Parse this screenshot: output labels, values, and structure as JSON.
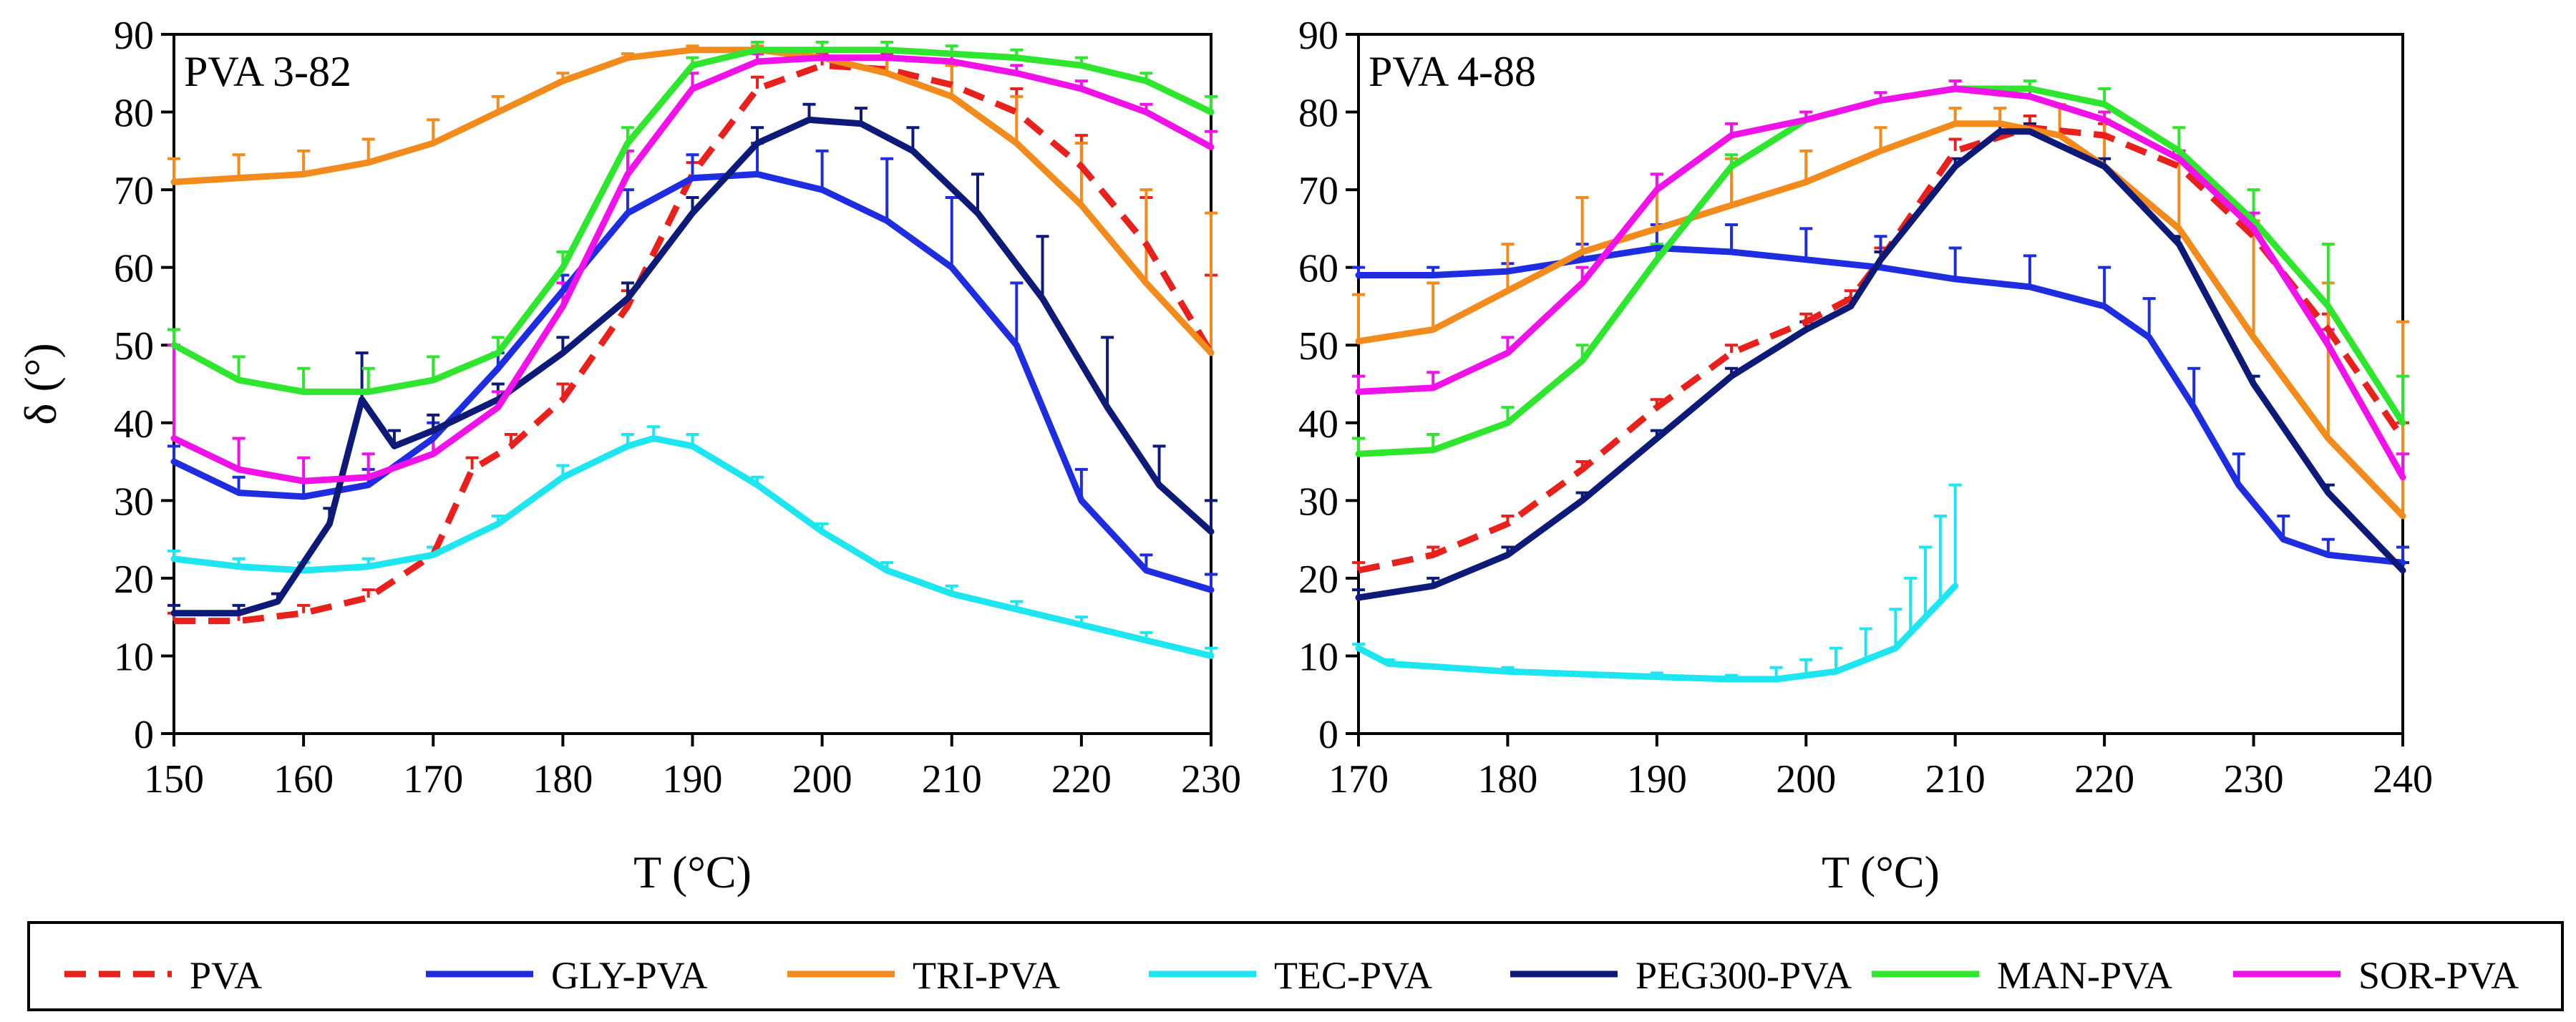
{
  "chart_data": [
    {
      "type": "line",
      "title": "PVA 3-82",
      "xlabel": "T (°C)",
      "ylabel": "δ (°)",
      "xlim": [
        150,
        230
      ],
      "ylim": [
        0,
        90
      ],
      "xticks": [
        150,
        160,
        170,
        180,
        190,
        200,
        210,
        220,
        230
      ],
      "yticks": [
        0,
        10,
        20,
        30,
        40,
        50,
        60,
        70,
        80,
        90
      ],
      "error_bars": "one-sided (upward), same colour as series",
      "grid": false,
      "series": [
        {
          "name": "PVA",
          "color": "#e8211c",
          "dash": true,
          "x": [
            150,
            155,
            160,
            165,
            170,
            173,
            176,
            180,
            185,
            190,
            195,
            200,
            205,
            210,
            215,
            220,
            225,
            230
          ],
          "y": [
            14.5,
            14.5,
            15.5,
            17.5,
            23,
            34,
            37,
            43,
            55,
            72,
            83,
            86,
            85.5,
            83.5,
            80,
            73,
            63,
            49
          ],
          "err": [
            1,
            1,
            1,
            1,
            1,
            1.5,
            1.5,
            2,
            2,
            1.5,
            1.5,
            1.5,
            2,
            2.5,
            3,
            4,
            6,
            10
          ]
        },
        {
          "name": "GLY-PVA",
          "color": "#1f2de0",
          "x": [
            150,
            155,
            160,
            165,
            170,
            175,
            180,
            185,
            190,
            195,
            200,
            205,
            210,
            215,
            220,
            225,
            230
          ],
          "y": [
            35,
            31,
            30.5,
            32,
            38,
            47,
            57,
            67,
            71.5,
            72,
            70,
            66,
            60,
            50,
            30,
            21,
            18.5
          ],
          "err": [
            2,
            2,
            2,
            2,
            2,
            2,
            2,
            3,
            3,
            4,
            5,
            8,
            9,
            8,
            4,
            2,
            2
          ]
        },
        {
          "name": "TRI-PVA",
          "color": "#f28a1c",
          "x": [
            150,
            155,
            160,
            165,
            170,
            175,
            180,
            185,
            190,
            195,
            200,
            205,
            210,
            215,
            220,
            225,
            230
          ],
          "y": [
            71,
            71.5,
            72,
            73.5,
            76,
            80,
            84,
            87,
            88,
            88,
            87,
            85,
            82,
            76,
            68,
            58,
            49
          ],
          "err": [
            3,
            3,
            3,
            3,
            3,
            2,
            1,
            0.5,
            0.5,
            0.5,
            1,
            2,
            4,
            6,
            8,
            12,
            18
          ]
        },
        {
          "name": "TEC-PVA",
          "color": "#1ee6f0",
          "x": [
            150,
            155,
            160,
            165,
            170,
            175,
            180,
            185,
            187,
            190,
            195,
            200,
            205,
            210,
            215,
            220,
            225,
            230
          ],
          "y": [
            22.5,
            21.5,
            21,
            21.5,
            23,
            27,
            33,
            37,
            38,
            37,
            32,
            26,
            21,
            18,
            16,
            14,
            12,
            10
          ],
          "err": [
            1,
            1,
            1,
            1,
            1,
            1,
            1.5,
            1.5,
            1.5,
            1.5,
            1,
            1,
            1,
            1,
            1,
            1,
            1,
            1
          ]
        },
        {
          "name": "PEG300-PVA",
          "color": "#0d1a78",
          "x": [
            150,
            155,
            158,
            162,
            164.5,
            167,
            170,
            175,
            180,
            185,
            190,
            195,
            199,
            203,
            207,
            212,
            217,
            222,
            226,
            230
          ],
          "y": [
            15.5,
            15.5,
            17,
            27,
            43,
            37,
            39,
            43,
            49,
            56,
            67,
            76,
            79,
            78.5,
            75,
            67,
            56,
            42,
            32,
            26
          ],
          "err": [
            1,
            1,
            1,
            2,
            6,
            2,
            2,
            2,
            2,
            2,
            2,
            2,
            2,
            2,
            3,
            5,
            8,
            9,
            5,
            4
          ]
        },
        {
          "name": "MAN-PVA",
          "color": "#2ee62e",
          "x": [
            150,
            155,
            160,
            165,
            170,
            175,
            180,
            185,
            190,
            195,
            200,
            205,
            210,
            215,
            220,
            225,
            230
          ],
          "y": [
            50,
            45.5,
            44,
            44,
            45.5,
            49,
            60,
            76,
            86,
            88,
            88,
            88,
            87.5,
            87,
            86,
            84,
            80
          ],
          "err": [
            2,
            3,
            3,
            3,
            3,
            2,
            2,
            2,
            1,
            1,
            1,
            1,
            1,
            1,
            1,
            1,
            2
          ]
        },
        {
          "name": "SOR-PVA",
          "color": "#f012e8",
          "x": [
            150,
            155,
            160,
            165,
            170,
            175,
            180,
            185,
            190,
            195,
            200,
            205,
            210,
            215,
            220,
            225,
            230
          ],
          "y": [
            38,
            34,
            32.5,
            33,
            36,
            42,
            55,
            72,
            83,
            86.5,
            87,
            87,
            86.5,
            85,
            83,
            80,
            75.5
          ],
          "err": [
            12,
            4,
            3,
            3,
            3,
            2,
            3,
            3,
            2,
            1,
            1,
            1,
            1,
            1,
            1,
            1,
            2
          ]
        }
      ]
    },
    {
      "type": "line",
      "title": "PVA 4-88",
      "xlabel": "T (°C)",
      "ylabel": "",
      "xlim": [
        170,
        240
      ],
      "ylim": [
        0,
        90
      ],
      "xticks": [
        170,
        180,
        190,
        200,
        210,
        220,
        230,
        240
      ],
      "yticks": [
        0,
        10,
        20,
        30,
        40,
        50,
        60,
        70,
        80,
        90
      ],
      "error_bars": "one-sided (upward), same colour as series",
      "grid": false,
      "series": [
        {
          "name": "PVA",
          "color": "#e8211c",
          "dash": true,
          "x": [
            170,
            175,
            180,
            185,
            190,
            195,
            200,
            203,
            205,
            210,
            215,
            220,
            225,
            230,
            235,
            240
          ],
          "y": [
            21,
            23,
            27,
            34,
            42,
            49,
            53,
            56,
            61,
            75,
            78,
            77,
            73,
            64,
            52,
            38
          ],
          "err": [
            1,
            1,
            1,
            1,
            1,
            1,
            1,
            1,
            1.5,
            1.5,
            1.5,
            1.5,
            2,
            2,
            2,
            2
          ]
        },
        {
          "name": "GLY-PVA",
          "color": "#1f2de0",
          "x": [
            170,
            175,
            180,
            185,
            190,
            195,
            200,
            205,
            210,
            215,
            220,
            223,
            226,
            229,
            232,
            235,
            240
          ],
          "y": [
            59,
            59,
            59.5,
            61,
            62.5,
            62,
            61,
            60,
            58.5,
            57.5,
            55,
            51,
            42,
            32,
            25,
            23,
            22
          ],
          "err": [
            1,
            1,
            1,
            2,
            3,
            3.5,
            4,
            4,
            4,
            4,
            5,
            5,
            5,
            4,
            3,
            2,
            2
          ]
        },
        {
          "name": "TRI-PVA",
          "color": "#f28a1c",
          "x": [
            170,
            175,
            180,
            185,
            190,
            195,
            200,
            205,
            210,
            213,
            217,
            220,
            225,
            230,
            235,
            240
          ],
          "y": [
            50.5,
            52,
            57,
            62,
            65,
            68,
            71,
            75,
            78.5,
            78.5,
            77,
            73,
            65,
            51,
            38,
            28
          ],
          "err": [
            6,
            6,
            6,
            7,
            7,
            6,
            4,
            3,
            2,
            2,
            4,
            6,
            10,
            15,
            20,
            25
          ]
        },
        {
          "name": "TEC-PVA",
          "color": "#1ee6f0",
          "x": [
            170,
            172,
            180,
            190,
            195,
            198,
            200,
            202,
            204,
            206,
            207,
            208,
            209,
            210
          ],
          "y": [
            11,
            9,
            8,
            7.3,
            7,
            7,
            7.5,
            8,
            9.5,
            11,
            13,
            15,
            17,
            19
          ],
          "err": [
            0.5,
            0.5,
            0.5,
            0.5,
            0.5,
            1.5,
            2,
            3,
            4,
            5,
            7,
            9,
            11,
            13
          ]
        },
        {
          "name": "PEG300-PVA",
          "color": "#0d1a78",
          "x": [
            170,
            175,
            180,
            185,
            190,
            195,
            200,
            203,
            205,
            210,
            213,
            215,
            220,
            225,
            230,
            235,
            240
          ],
          "y": [
            17.5,
            19,
            23,
            30,
            38,
            46,
            52,
            55,
            61,
            73,
            77.5,
            77.5,
            73,
            63,
            45,
            31,
            21
          ],
          "err": [
            1,
            1,
            1,
            1,
            1,
            1,
            1,
            1,
            1,
            1,
            1,
            1,
            1,
            1,
            1,
            1,
            1
          ]
        },
        {
          "name": "MAN-PVA",
          "color": "#2ee62e",
          "x": [
            170,
            175,
            180,
            185,
            190,
            195,
            200,
            205,
            210,
            215,
            220,
            225,
            230,
            235,
            240
          ],
          "y": [
            36,
            36.5,
            40,
            48,
            61,
            73,
            79,
            81.5,
            83,
            83,
            81,
            75,
            66,
            55,
            40
          ],
          "err": [
            2,
            2,
            2,
            2,
            2,
            1.5,
            1,
            1,
            1,
            1,
            2,
            3,
            4,
            8,
            6
          ]
        },
        {
          "name": "SOR-PVA",
          "color": "#f012e8",
          "x": [
            170,
            175,
            180,
            185,
            190,
            195,
            200,
            205,
            210,
            215,
            220,
            225,
            230,
            235,
            240
          ],
          "y": [
            44,
            44.5,
            49,
            58,
            70,
            77,
            79,
            81.5,
            83,
            82,
            79,
            74,
            65,
            50,
            33
          ],
          "err": [
            2,
            2,
            2,
            2,
            2,
            1.5,
            1,
            1,
            1,
            1,
            1,
            1,
            2,
            2,
            3
          ]
        }
      ]
    }
  ],
  "legend": [
    {
      "name": "PVA",
      "color": "#e8211c",
      "dash": true
    },
    {
      "name": "GLY-PVA",
      "color": "#1f2de0",
      "dash": false
    },
    {
      "name": "TRI-PVA",
      "color": "#f28a1c",
      "dash": false
    },
    {
      "name": "TEC-PVA",
      "color": "#1ee6f0",
      "dash": false
    },
    {
      "name": "PEG300-PVA",
      "color": "#0d1a78",
      "dash": false
    },
    {
      "name": "MAN-PVA",
      "color": "#2ee62e",
      "dash": false
    },
    {
      "name": "SOR-PVA",
      "color": "#f012e8",
      "dash": false
    }
  ],
  "legend_placement": "bottom, boxed, single row"
}
